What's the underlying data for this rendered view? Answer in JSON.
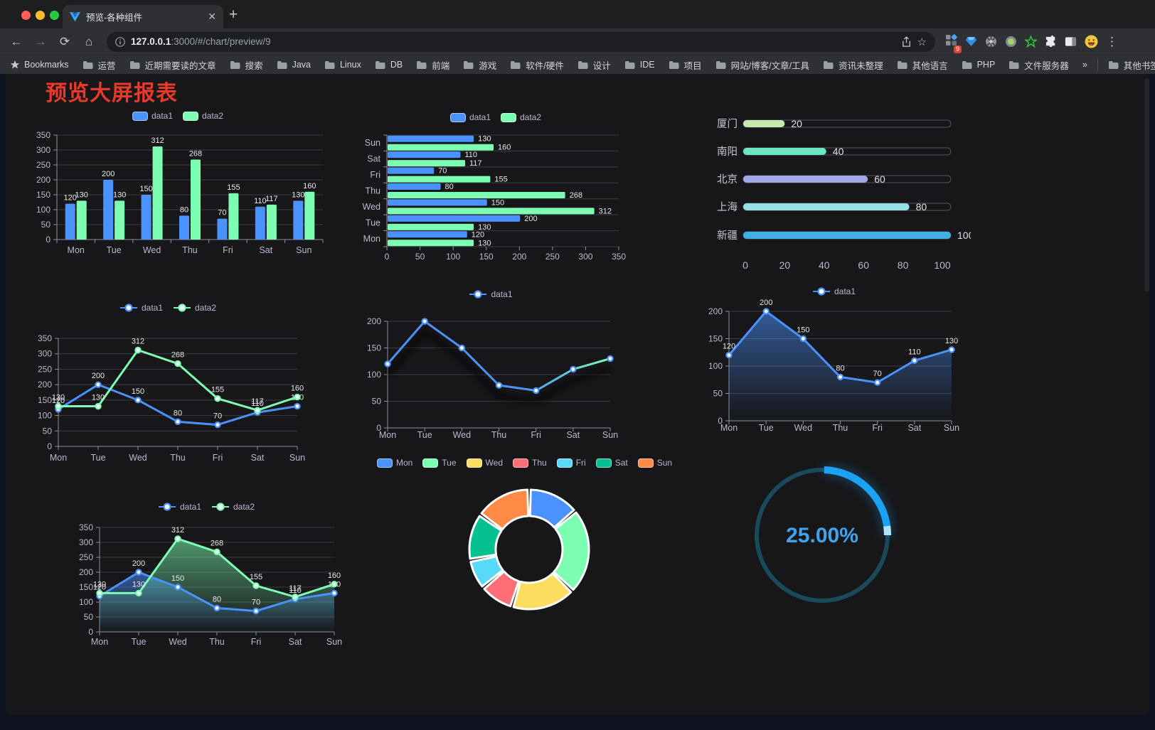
{
  "browser": {
    "tab_title": "预览-各种组件",
    "new_tab_label": "+",
    "url_host": "127.0.0.1",
    "url_rest": ":3000/#/chart/preview/9",
    "extension_badge": "9",
    "bookmarks_label": "Bookmarks",
    "bookmarks": [
      "运营",
      "近期需要读的文章",
      "搜索",
      "Java",
      "Linux",
      "DB",
      "前端",
      "游戏",
      "软件/硬件",
      "设计",
      "IDE",
      "项目",
      "网站/博客/文章/工具",
      "资讯未整理",
      "其他语言",
      "PHP",
      "文件服务器"
    ],
    "bookmarks_overflow": "»",
    "other_bookmarks": "其他书签"
  },
  "page": {
    "title": "预览大屏报表",
    "title_color": "#e8392a",
    "background": "#17171a"
  },
  "palette": {
    "data1": "#4992ff",
    "data2": "#7cffb2",
    "axis_label": "#b9b8ce",
    "value_label": "#e8e8ea",
    "grid": "#3b3b46",
    "axis": "#8e8e9c"
  },
  "chart_data": {
    "c1": {
      "type": "bar",
      "categories": [
        "Mon",
        "Tue",
        "Wed",
        "Thu",
        "Fri",
        "Sat",
        "Sun"
      ],
      "series": [
        {
          "name": "data1",
          "color": "#4992ff",
          "values": [
            120,
            200,
            150,
            80,
            70,
            110,
            130
          ]
        },
        {
          "name": "data2",
          "color": "#7cffb2",
          "values": [
            130,
            130,
            312,
            268,
            155,
            117,
            160
          ]
        }
      ],
      "ylim": [
        0,
        350
      ],
      "ytick": 50,
      "legend_position": "top",
      "grid": true
    },
    "c2": {
      "type": "bar-horizontal",
      "categories": [
        "Mon",
        "Tue",
        "Wed",
        "Thu",
        "Fri",
        "Sat",
        "Sun"
      ],
      "category_order_top_to_bottom": [
        "Sun",
        "Sat",
        "Fri",
        "Thu",
        "Wed",
        "Tue",
        "Mon"
      ],
      "series": [
        {
          "name": "data1",
          "color": "#4992ff",
          "values": [
            120,
            200,
            150,
            80,
            70,
            110,
            130
          ]
        },
        {
          "name": "data2",
          "color": "#7cffb2",
          "values": [
            130,
            130,
            312,
            268,
            155,
            117,
            160
          ]
        }
      ],
      "xlim": [
        0,
        350
      ],
      "xtick": 50,
      "legend_position": "top",
      "grid": true
    },
    "c3": {
      "type": "bar-horizontal",
      "subtype": "progress",
      "categories": [
        "厦门",
        "南阳",
        "北京",
        "上海",
        "新疆"
      ],
      "values": [
        20,
        40,
        60,
        80,
        100
      ],
      "colors": [
        "#c4ebad",
        "#6be6c1",
        "#a0a7e6",
        "#96dee8",
        "#3fb1e3"
      ],
      "xlim": [
        0,
        100
      ],
      "xticks": [
        0,
        20,
        40,
        60,
        80,
        100
      ]
    },
    "c4": {
      "type": "line",
      "categories": [
        "Mon",
        "Tue",
        "Wed",
        "Thu",
        "Fri",
        "Sat",
        "Sun"
      ],
      "series": [
        {
          "name": "data1",
          "color": "#4992ff",
          "values": [
            120,
            200,
            150,
            80,
            70,
            110,
            130
          ]
        },
        {
          "name": "data2",
          "color": "#7cffb2",
          "values": [
            130,
            130,
            312,
            268,
            155,
            117,
            160
          ]
        }
      ],
      "ylim": [
        0,
        350
      ],
      "ytick": 50,
      "show_labels": true,
      "legend_position": "top"
    },
    "c5": {
      "type": "line",
      "categories": [
        "Mon",
        "Tue",
        "Wed",
        "Thu",
        "Fri",
        "Sat",
        "Sun"
      ],
      "series": [
        {
          "name": "data1",
          "color": "#4992ff",
          "values": [
            120,
            200,
            150,
            80,
            70,
            110,
            130
          ]
        }
      ],
      "ylim": [
        0,
        200
      ],
      "ytick": 50,
      "show_labels": false,
      "line_gradient": [
        "#4992ff",
        "#7cffb2"
      ],
      "shadow": true,
      "legend_position": "top"
    },
    "c6": {
      "type": "area",
      "categories": [
        "Mon",
        "Tue",
        "Wed",
        "Thu",
        "Fri",
        "Sat",
        "Sun"
      ],
      "series": [
        {
          "name": "data1",
          "color": "#4992ff",
          "values": [
            120,
            200,
            150,
            80,
            70,
            110,
            130
          ],
          "area": true
        }
      ],
      "ylim": [
        0,
        200
      ],
      "ytick": 50,
      "show_labels": true,
      "legend_position": "top"
    },
    "c7": {
      "type": "area",
      "categories": [
        "Mon",
        "Tue",
        "Wed",
        "Thu",
        "Fri",
        "Sat",
        "Sun"
      ],
      "series": [
        {
          "name": "data1",
          "color": "#4992ff",
          "values": [
            120,
            200,
            150,
            80,
            70,
            110,
            130
          ],
          "area": true
        },
        {
          "name": "data2",
          "color": "#7cffb2",
          "values": [
            130,
            130,
            312,
            268,
            155,
            117,
            160
          ],
          "area": true
        }
      ],
      "ylim": [
        0,
        350
      ],
      "ytick": 50,
      "show_labels": true,
      "legend_position": "top"
    },
    "c8": {
      "type": "pie",
      "subtype": "donut",
      "labels": [
        "Mon",
        "Tue",
        "Wed",
        "Thu",
        "Fri",
        "Sat",
        "Sun"
      ],
      "values": [
        120,
        200,
        150,
        80,
        70,
        110,
        130
      ],
      "colors": [
        "#4992ff",
        "#7cffb2",
        "#fddd60",
        "#ff6e76",
        "#58d9f9",
        "#05c091",
        "#ff8a45"
      ],
      "legend_position": "top"
    },
    "c9": {
      "type": "gauge",
      "value": 25,
      "label": "25.00%",
      "progress_color": "#1ca2f5",
      "track_color": "#1a4a5a",
      "text_color": "#3fa4ef"
    }
  }
}
